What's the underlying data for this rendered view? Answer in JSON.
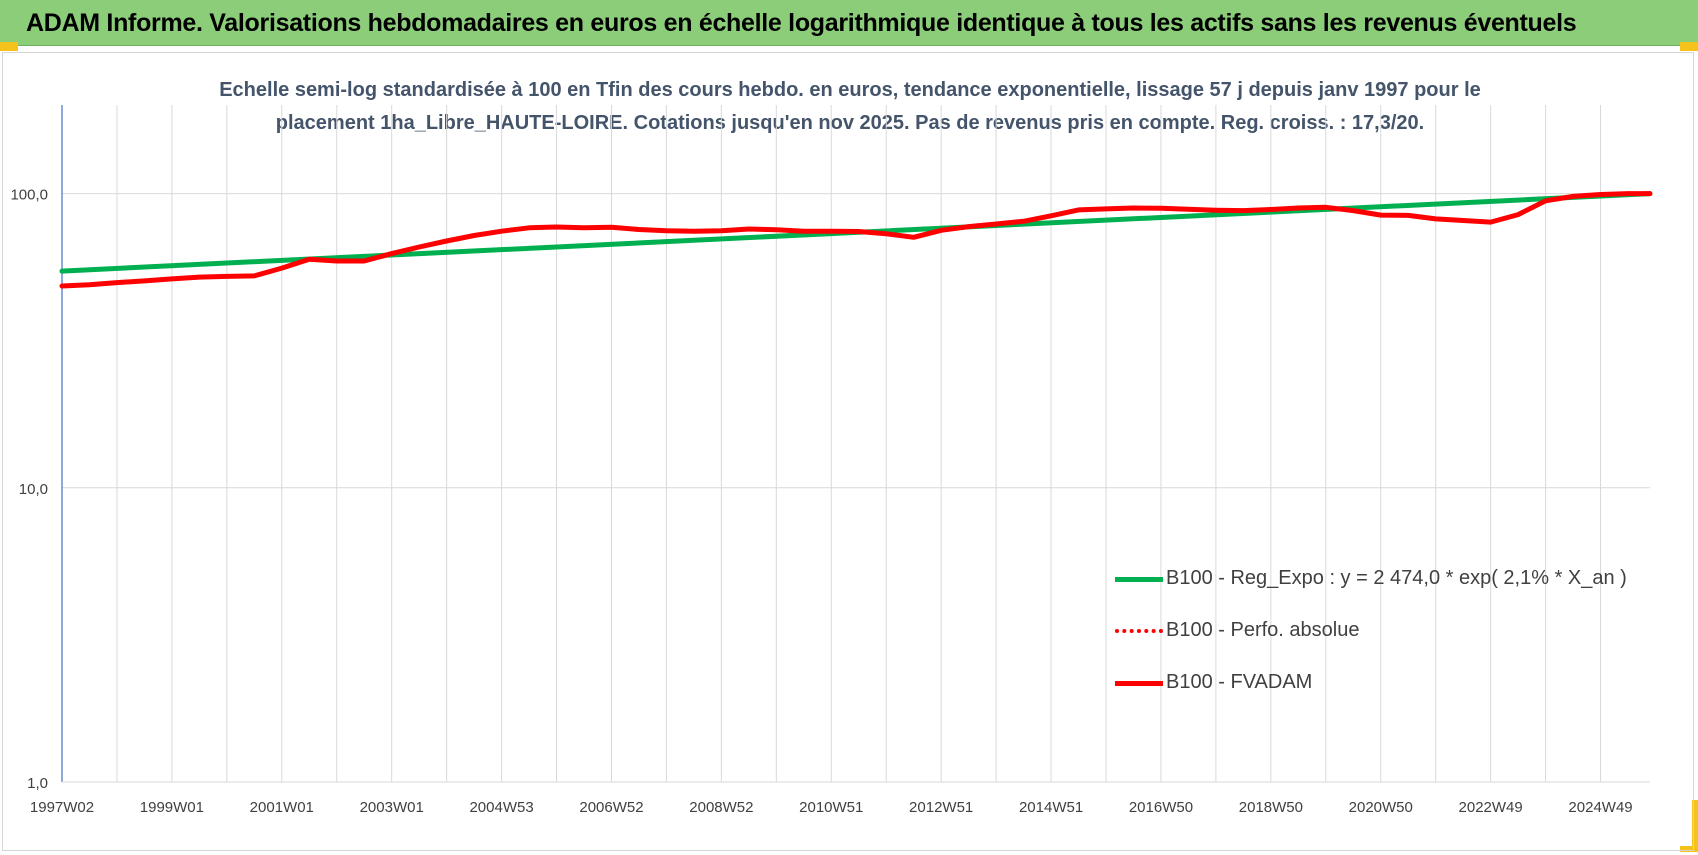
{
  "header": {
    "title": "ADAM Informe. Valorisations hebdomadaires en euros en échelle logarithmique identique à tous les actifs sans les revenus éventuels"
  },
  "chart_data": {
    "type": "line",
    "subtitle_lines": [
      "Echelle semi-log standardisée à 100 en Tfin des cours hebdo. en euros, tendance exponentielle, lissage 57 j depuis janv 1997 pour le",
      "placement 1ha_Libre_HAUTE-LOIRE. Cotations jusqu'en nov 2025.  Pas de revenus pris en compte. Reg. croiss. : 17,3/20."
    ],
    "y_scale": "log",
    "ylim": [
      1,
      200
    ],
    "y_ticks": [
      1,
      10,
      100
    ],
    "y_tick_labels": [
      "1,0",
      "10,0",
      "100,0"
    ],
    "x_tick_labels": [
      "1997W02",
      "1999W01",
      "2001W01",
      "2003W01",
      "2004W53",
      "2006W52",
      "2008W52",
      "2010W51",
      "2012W51",
      "2014W51",
      "2016W50",
      "2018W50",
      "2020W50",
      "2022W49",
      "2024W49"
    ],
    "xlim": [
      1997.0,
      2025.9
    ],
    "grid": true,
    "legend_position": "bottom-right",
    "series": [
      {
        "name": "B100 - Reg_Expo : y = 2 474,0 * exp( 2,1% *  X_an )",
        "color": "#00b050",
        "style": "solid",
        "x": [
          1997.0,
          2025.9
        ],
        "values": [
          54.5,
          100.0
        ]
      },
      {
        "name": "B100 - Perfo. absolue",
        "color": "#ff0000",
        "style": "dotted",
        "x": [],
        "values": []
      },
      {
        "name": "B100 - FVADAM",
        "color": "#ff0000",
        "style": "solid",
        "x": [
          1997.0,
          1997.5,
          1998.0,
          1998.5,
          1999.0,
          1999.5,
          2000.0,
          2000.5,
          2001.0,
          2001.5,
          2002.0,
          2002.5,
          2003.0,
          2003.5,
          2004.0,
          2004.5,
          2005.0,
          2005.5,
          2006.0,
          2006.5,
          2007.0,
          2007.5,
          2008.0,
          2008.5,
          2009.0,
          2009.5,
          2010.0,
          2010.5,
          2011.0,
          2011.5,
          2012.0,
          2012.5,
          2013.0,
          2013.5,
          2014.0,
          2014.5,
          2015.0,
          2015.5,
          2016.0,
          2016.5,
          2017.0,
          2017.5,
          2018.0,
          2018.5,
          2019.0,
          2019.5,
          2020.0,
          2020.5,
          2021.0,
          2021.5,
          2022.0,
          2022.5,
          2023.0,
          2023.5,
          2024.0,
          2024.5,
          2025.0,
          2025.5,
          2025.9
        ],
        "values": [
          48.5,
          49.0,
          49.8,
          50.5,
          51.3,
          52.0,
          52.3,
          52.5,
          55.8,
          59.8,
          59.0,
          59.0,
          62.5,
          65.8,
          69.0,
          72.0,
          74.5,
          76.5,
          77.0,
          76.5,
          76.8,
          75.5,
          74.8,
          74.5,
          74.8,
          75.8,
          75.3,
          74.5,
          74.5,
          74.3,
          73.0,
          71.0,
          75.0,
          77.2,
          78.8,
          80.5,
          84.0,
          88.0,
          88.7,
          89.3,
          89.2,
          88.5,
          87.8,
          87.5,
          88.3,
          89.3,
          89.8,
          87.5,
          84.5,
          84.3,
          82.0,
          81.0,
          80.0,
          84.8,
          94.5,
          97.8,
          99.3,
          100.0,
          100.0
        ]
      }
    ]
  }
}
